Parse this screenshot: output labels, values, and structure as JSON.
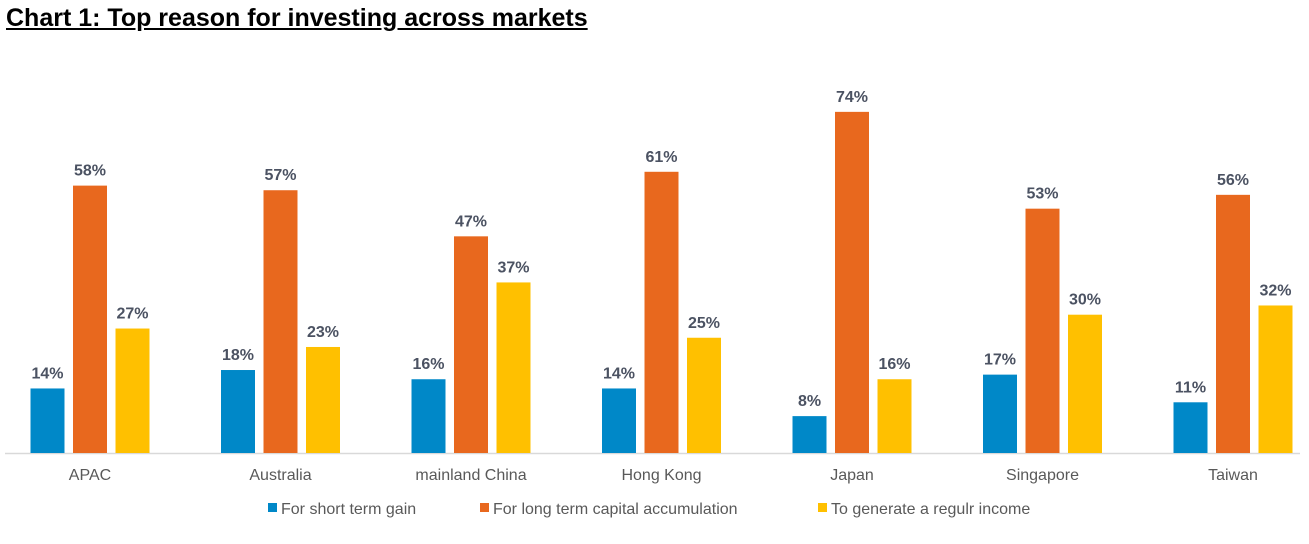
{
  "chart_data": {
    "type": "bar",
    "title": "Chart 1: Top reason for investing across markets",
    "categories": [
      "APAC",
      "Australia",
      "mainland China",
      "Hong Kong",
      "Japan",
      "Singapore",
      "Taiwan"
    ],
    "series": [
      {
        "name": "For short term gain",
        "color": "#0088c8",
        "values": [
          14,
          18,
          16,
          14,
          8,
          17,
          11
        ]
      },
      {
        "name": "For long term capital accumulation",
        "color": "#e8681e",
        "values": [
          58,
          57,
          47,
          61,
          74,
          53,
          56
        ]
      },
      {
        "name": "To generate a regulr income",
        "color": "#ffc000",
        "values": [
          27,
          23,
          37,
          25,
          16,
          30,
          32
        ]
      }
    ],
    "value_format": "percent",
    "ylim": [
      0,
      80
    ],
    "grid": false,
    "legend": "bottom"
  }
}
